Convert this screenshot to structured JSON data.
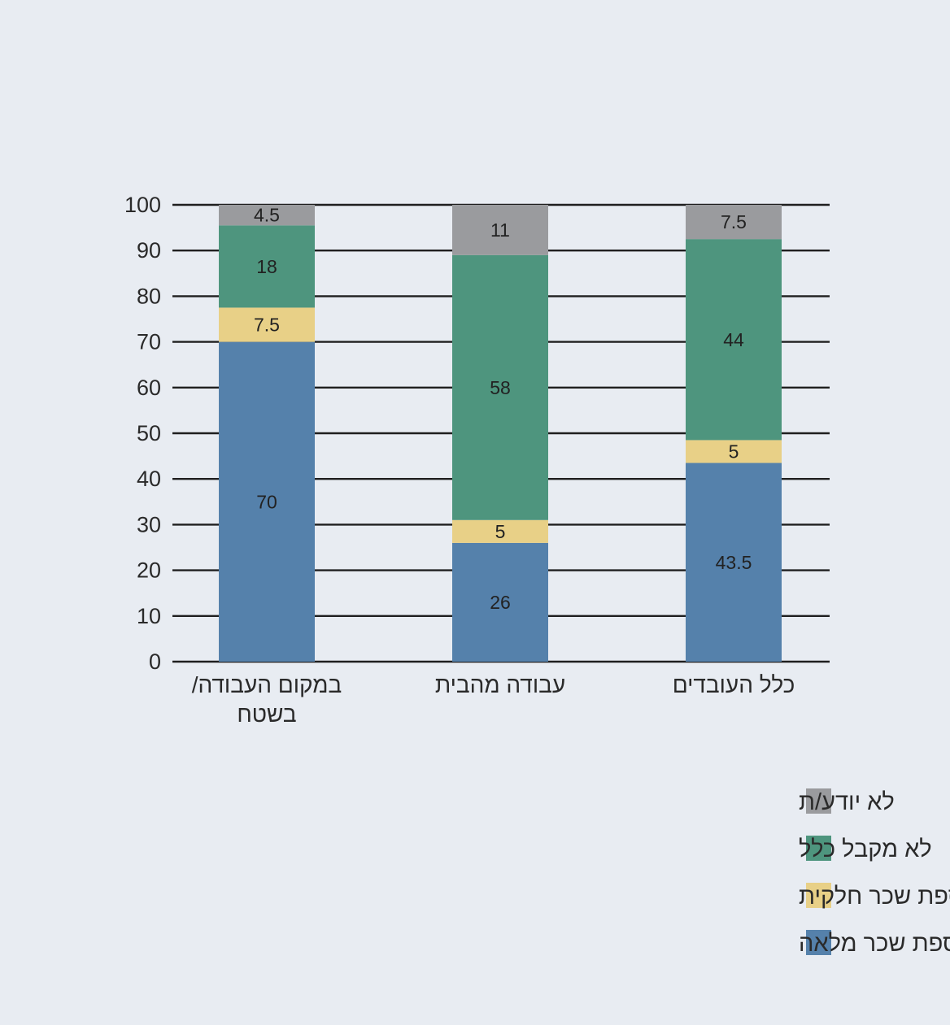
{
  "chart_data": {
    "type": "bar",
    "stacked": true,
    "categories": [
      "כלל העובדים",
      "עבודה מהבית",
      "במקום העבודה/ בשטח"
    ],
    "series": [
      {
        "name": "מקבל תוספת שכר מלאה",
        "values": [
          43.5,
          26,
          70
        ],
        "color": "#5581ab"
      },
      {
        "name": "מקבל תוספת שכר חלקית",
        "values": [
          5,
          5,
          7.5
        ],
        "color": "#e8d087"
      },
      {
        "name": "לא מקבל כלל",
        "values": [
          44,
          58,
          18
        ],
        "color": "#4e957e"
      },
      {
        "name": "לא יודע/ת",
        "values": [
          7.5,
          11,
          4.5
        ],
        "color": "#9a9b9e"
      }
    ],
    "ylim": [
      0,
      100
    ],
    "yticks": [
      0,
      10,
      20,
      30,
      40,
      50,
      60,
      70,
      80,
      90,
      100
    ],
    "grid": true,
    "legend_position": "bottom-right",
    "title": "",
    "xlabel": "",
    "ylabel": ""
  }
}
